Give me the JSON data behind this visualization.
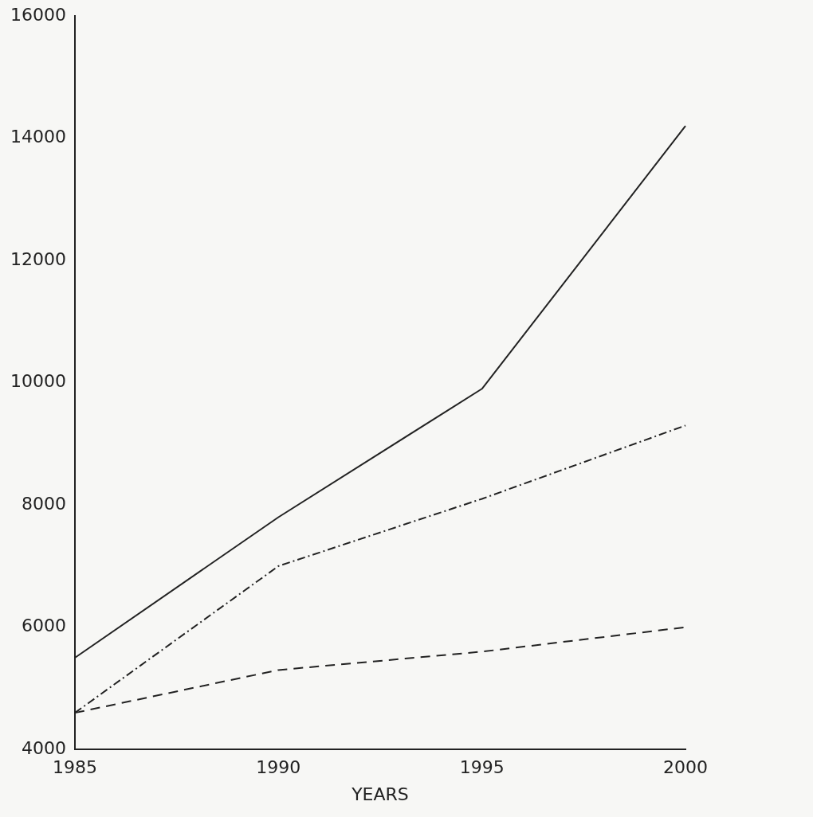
{
  "chart_data": {
    "type": "line",
    "xlabel": "YEARS",
    "categories": [
      "1985",
      "1990",
      "1995",
      "2000"
    ],
    "series": [
      {
        "color": "#222222",
        "line_style": "solid",
        "values": [
          5500,
          7800,
          9900,
          14200
        ]
      },
      {
        "color": "#222222",
        "line_style": "dashdot",
        "values": [
          4600,
          7000,
          8100,
          9300
        ]
      },
      {
        "color": "#222222",
        "line_style": "dashed",
        "values": [
          4600,
          5300,
          5600,
          6000
        ]
      }
    ],
    "ylim": [
      4000,
      16000
    ],
    "yticks": [
      4000,
      6000,
      8000,
      10000,
      12000,
      14000,
      16000
    ],
    "grid": false,
    "legend": false,
    "marker": "none"
  }
}
